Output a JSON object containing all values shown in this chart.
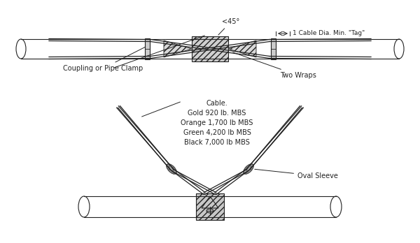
{
  "bg_color": "#ffffff",
  "line_color": "#222222",
  "hatch_color": "#555555",
  "title": "",
  "annotations": {
    "angle_label": "<45°",
    "cable_dia_label": "1 Cable Dia. Min. \"Tag\"",
    "coupling_label": "Coupling or Pipe Clamp",
    "two_wraps_label": "Two Wraps",
    "cable_label": "Cable.\nGold 920 lb. MBS\nOrange 1,700 lb MBS\nGreen 4,200 lb MBS\nBlack 7,000 lb MBS",
    "oval_sleeve_label": "Oval Sleeve"
  },
  "figsize": [
    6.0,
    3.48
  ],
  "dpi": 100
}
